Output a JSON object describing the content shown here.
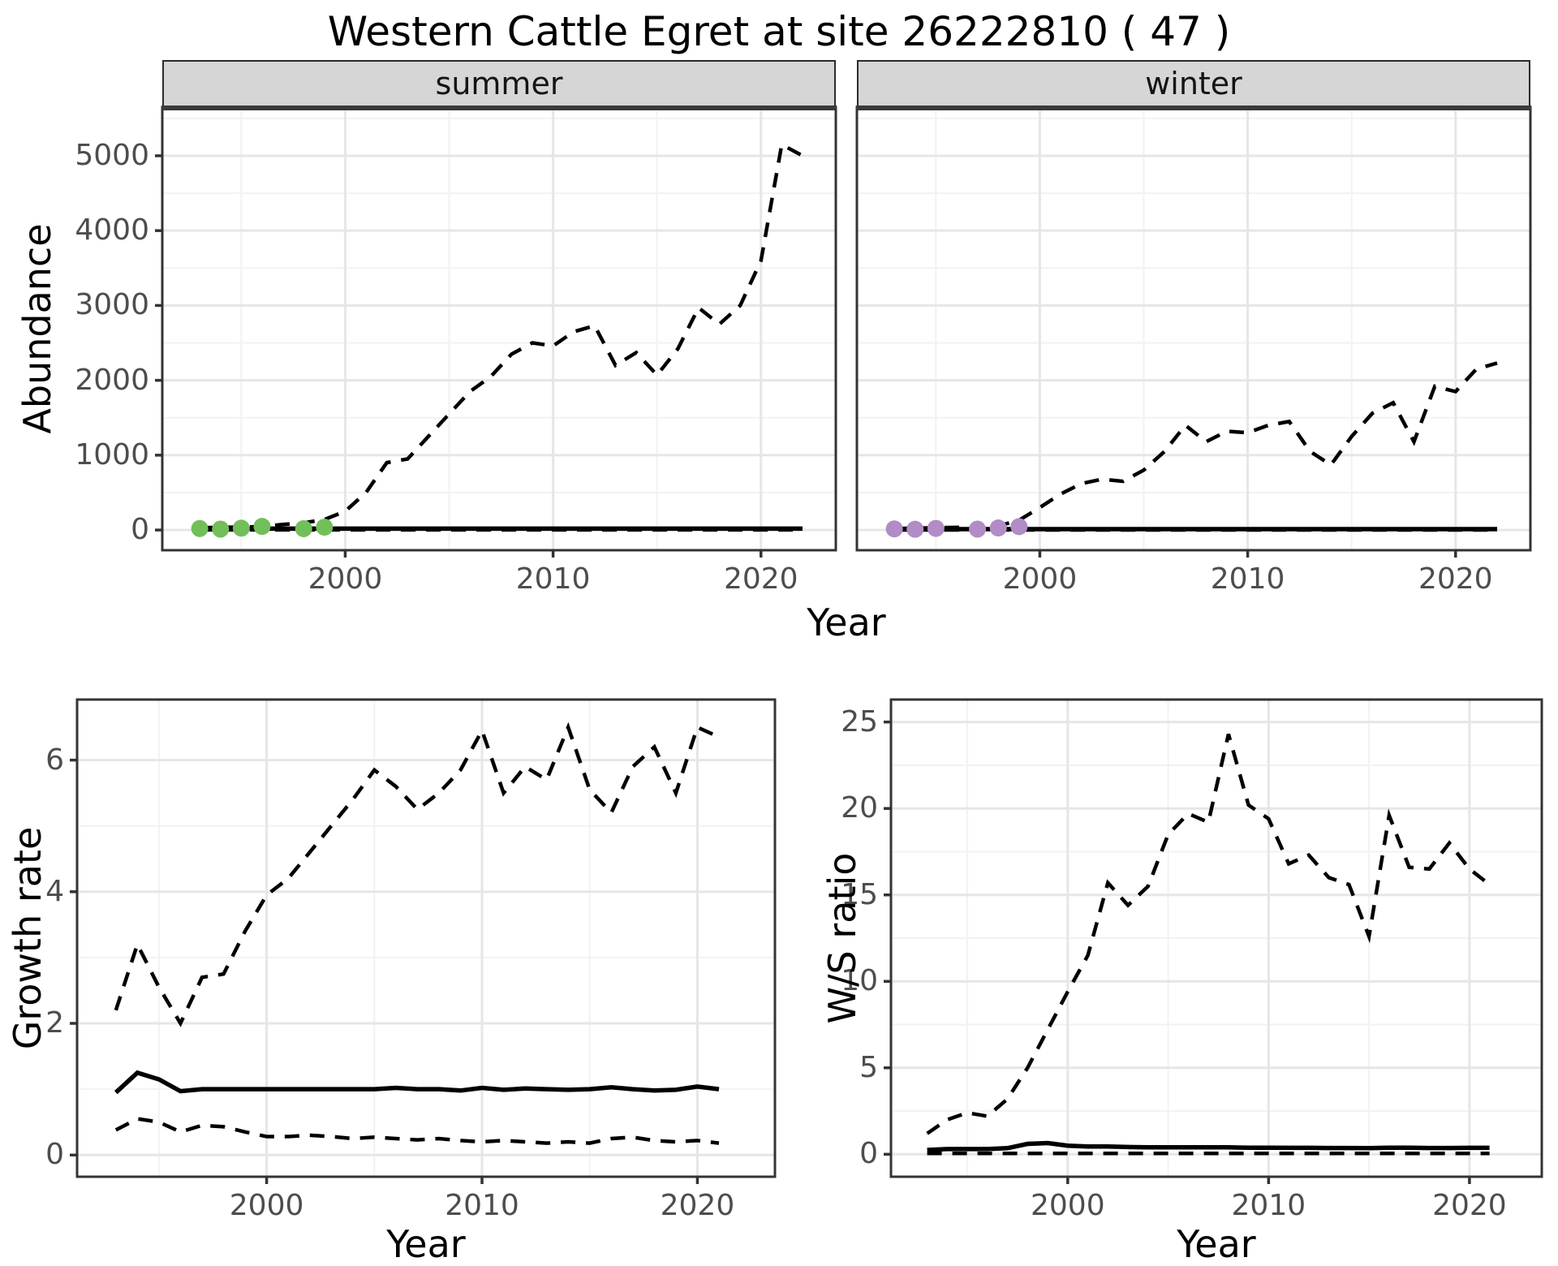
{
  "title": "Western Cattle Egret at site 26222810 ( 47 )",
  "facets": {
    "summer": "summer",
    "winter": "winter"
  },
  "axes": {
    "abundance_label": "Abundance",
    "year_label": "Year",
    "growth_label": "Growth rate",
    "ws_label": "W/S ratio"
  },
  "colors": {
    "line": "#000000",
    "summer_points": "#72BF5A",
    "winter_points": "#B18CC6",
    "grid_major": "#e6e6e6",
    "grid_minor": "#f2f2f2",
    "strip_bg": "#d6d6d6",
    "panel_border": "#333333",
    "tick_text": "#4d4d4d"
  },
  "chart_data": [
    {
      "id": "abundance-summer",
      "type": "line",
      "title": "summer",
      "xlabel": "Year",
      "ylabel": "Abundance",
      "ylim": [
        0,
        5200
      ],
      "xticks": [
        2000,
        2010,
        2020
      ],
      "yticks": [
        0,
        1000,
        2000,
        3000,
        4000,
        5000
      ],
      "x": [
        1993,
        1994,
        1995,
        1996,
        1997,
        1998,
        1999,
        2000,
        2001,
        2002,
        2003,
        2004,
        2005,
        2006,
        2007,
        2008,
        2009,
        2010,
        2011,
        2012,
        2013,
        2014,
        2015,
        2016,
        2017,
        2018,
        2019,
        2020,
        2021,
        2022
      ],
      "series": [
        {
          "name": "upper_95_CI",
          "style": "dashed",
          "values": [
            30,
            35,
            40,
            45,
            75,
            95,
            140,
            250,
            500,
            900,
            950,
            1250,
            1550,
            1850,
            2050,
            2350,
            2500,
            2460,
            2650,
            2730,
            2200,
            2370,
            2070,
            2420,
            2970,
            2750,
            3000,
            3600,
            5150,
            5000
          ]
        },
        {
          "name": "median",
          "style": "solid",
          "values": [
            18,
            18,
            18,
            18,
            18,
            18,
            18,
            18,
            18,
            18,
            18,
            18,
            18,
            18,
            18,
            18,
            18,
            18,
            18,
            18,
            18,
            18,
            18,
            18,
            18,
            18,
            18,
            18,
            18,
            18
          ]
        },
        {
          "name": "lower_95_CI",
          "style": "dashed",
          "values": [
            2,
            2,
            2,
            2,
            2,
            2,
            2,
            2,
            2,
            2,
            2,
            2,
            2,
            2,
            2,
            2,
            2,
            2,
            2,
            2,
            2,
            2,
            2,
            2,
            2,
            2,
            2,
            2,
            2,
            2
          ]
        }
      ],
      "points": {
        "name": "observed_summer_counts",
        "color": "#72BF5A",
        "x": [
          1993,
          1994,
          1995,
          1996,
          1998,
          1999
        ],
        "y": [
          20,
          12,
          25,
          48,
          18,
          38
        ]
      }
    },
    {
      "id": "abundance-winter",
      "type": "line",
      "title": "winter",
      "xlabel": "Year",
      "ylabel": "Abundance",
      "ylim": [
        0,
        2300
      ],
      "xticks": [
        2000,
        2010,
        2020
      ],
      "yticks": [
        0,
        1000,
        2000,
        3000,
        4000,
        5000
      ],
      "x": [
        1993,
        1994,
        1995,
        1996,
        1997,
        1998,
        1999,
        2000,
        2001,
        2002,
        2003,
        2004,
        2005,
        2006,
        2007,
        2008,
        2009,
        2010,
        2011,
        2012,
        2013,
        2014,
        2015,
        2016,
        2017,
        2018,
        2019,
        2020,
        2021,
        2022
      ],
      "series": [
        {
          "name": "upper_95_CI",
          "style": "dashed",
          "values": [
            20,
            25,
            30,
            35,
            40,
            55,
            130,
            300,
            480,
            620,
            680,
            650,
            800,
            1050,
            1400,
            1180,
            1320,
            1300,
            1400,
            1450,
            1050,
            870,
            1250,
            1560,
            1700,
            1180,
            1920,
            1850,
            2150,
            2230
          ]
        },
        {
          "name": "median",
          "style": "solid",
          "values": [
            12,
            12,
            12,
            12,
            12,
            12,
            12,
            12,
            12,
            12,
            12,
            12,
            12,
            12,
            12,
            12,
            12,
            12,
            12,
            12,
            12,
            12,
            12,
            12,
            12,
            12,
            12,
            12,
            12,
            12
          ]
        },
        {
          "name": "lower_95_CI",
          "style": "dashed",
          "values": [
            1,
            1,
            1,
            1,
            1,
            1,
            1,
            1,
            1,
            1,
            1,
            1,
            1,
            1,
            1,
            1,
            1,
            1,
            1,
            1,
            1,
            1,
            1,
            1,
            1,
            1,
            1,
            1,
            1,
            1
          ]
        }
      ],
      "points": {
        "name": "observed_winter_counts",
        "color": "#B18CC6",
        "x": [
          1993,
          1994,
          1995,
          1997,
          1998,
          1999
        ],
        "y": [
          15,
          10,
          22,
          12,
          28,
          45
        ]
      }
    },
    {
      "id": "growth-rate",
      "type": "line",
      "title": "",
      "xlabel": "Year",
      "ylabel": "Growth rate",
      "ylim": [
        0,
        6.6
      ],
      "xticks": [
        2000,
        2010,
        2020
      ],
      "yticks": [
        0,
        2,
        4,
        6
      ],
      "x": [
        1993,
        1994,
        1995,
        1996,
        1997,
        1998,
        1999,
        2000,
        2001,
        2002,
        2003,
        2004,
        2005,
        2006,
        2007,
        2008,
        2009,
        2010,
        2011,
        2012,
        2013,
        2014,
        2015,
        2016,
        2017,
        2018,
        2019,
        2020,
        2021
      ],
      "series": [
        {
          "name": "upper_95_CI",
          "style": "dashed",
          "values": [
            2.2,
            3.2,
            2.55,
            2.0,
            2.7,
            2.75,
            3.4,
            3.95,
            4.2,
            4.6,
            5.0,
            5.4,
            5.85,
            5.6,
            5.25,
            5.5,
            5.85,
            6.45,
            5.5,
            5.9,
            5.7,
            6.5,
            5.55,
            5.2,
            5.9,
            6.2,
            5.5,
            6.5,
            6.35
          ]
        },
        {
          "name": "median",
          "style": "solid",
          "values": [
            0.95,
            1.25,
            1.15,
            0.97,
            1.0,
            1.0,
            1.0,
            1.0,
            1.0,
            1.0,
            1.0,
            1.0,
            1.0,
            1.02,
            1.0,
            1.0,
            0.98,
            1.02,
            0.99,
            1.01,
            1.0,
            0.99,
            1.0,
            1.03,
            1.0,
            0.98,
            0.99,
            1.04,
            1.0
          ]
        },
        {
          "name": "lower_95_CI",
          "style": "dashed",
          "values": [
            0.38,
            0.55,
            0.5,
            0.35,
            0.45,
            0.43,
            0.35,
            0.28,
            0.28,
            0.3,
            0.28,
            0.25,
            0.27,
            0.25,
            0.23,
            0.25,
            0.22,
            0.2,
            0.22,
            0.2,
            0.18,
            0.2,
            0.18,
            0.25,
            0.27,
            0.22,
            0.2,
            0.22,
            0.18
          ]
        }
      ]
    },
    {
      "id": "ws-ratio",
      "type": "line",
      "title": "",
      "xlabel": "Year",
      "ylabel": "W/S ratio",
      "ylim": [
        0,
        24.5
      ],
      "xticks": [
        2000,
        2010,
        2020
      ],
      "yticks": [
        0,
        5,
        10,
        15,
        20,
        25
      ],
      "x": [
        1993,
        1994,
        1995,
        1996,
        1997,
        1998,
        1999,
        2000,
        2001,
        2002,
        2003,
        2004,
        2005,
        2006,
        2007,
        2008,
        2009,
        2010,
        2011,
        2012,
        2013,
        2014,
        2015,
        2016,
        2017,
        2018,
        2019,
        2020,
        2021
      ],
      "series": [
        {
          "name": "upper_95_CI",
          "style": "dashed",
          "values": [
            1.2,
            2.0,
            2.4,
            2.2,
            3.2,
            5.0,
            7.2,
            9.4,
            11.5,
            15.7,
            14.4,
            15.5,
            18.5,
            19.7,
            19.2,
            24.3,
            20.2,
            19.4,
            16.8,
            17.3,
            16.0,
            15.6,
            12.6,
            19.6,
            16.6,
            16.5,
            18.0,
            16.5,
            15.6
          ]
        },
        {
          "name": "median",
          "style": "solid",
          "values": [
            0.25,
            0.3,
            0.3,
            0.3,
            0.35,
            0.6,
            0.65,
            0.5,
            0.45,
            0.45,
            0.42,
            0.4,
            0.4,
            0.4,
            0.4,
            0.4,
            0.38,
            0.38,
            0.37,
            0.37,
            0.36,
            0.36,
            0.35,
            0.38,
            0.38,
            0.36,
            0.36,
            0.37,
            0.37
          ]
        },
        {
          "name": "lower_95_CI",
          "style": "dashed",
          "values": [
            0.05,
            0.05,
            0.05,
            0.05,
            0.05,
            0.05,
            0.05,
            0.05,
            0.05,
            0.05,
            0.05,
            0.05,
            0.05,
            0.05,
            0.05,
            0.05,
            0.05,
            0.05,
            0.05,
            0.05,
            0.05,
            0.05,
            0.05,
            0.05,
            0.05,
            0.05,
            0.05,
            0.05,
            0.05
          ]
        }
      ]
    }
  ]
}
